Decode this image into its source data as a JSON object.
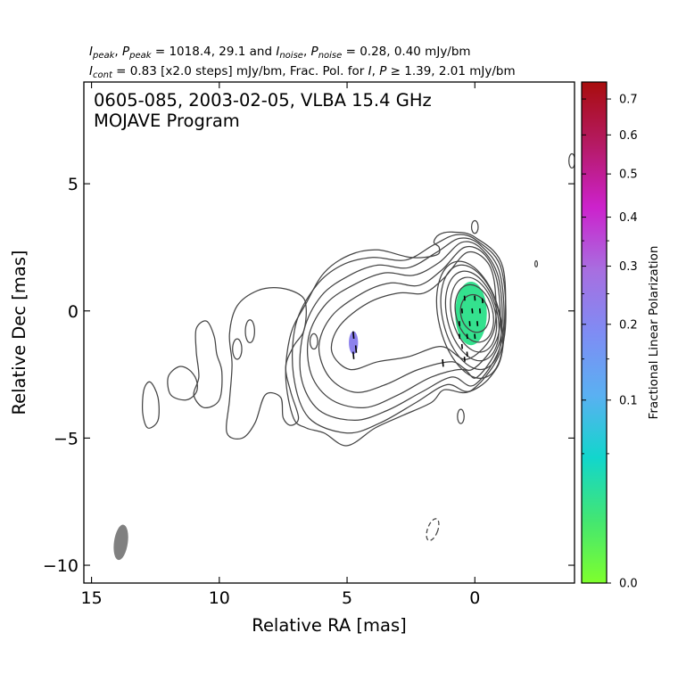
{
  "header": {
    "line1_parts": [
      {
        "t": "I",
        "i": true
      },
      {
        "t": "peak",
        "sub": true
      },
      {
        "t": ", "
      },
      {
        "t": "P",
        "i": true
      },
      {
        "t": "peak",
        "sub": true
      },
      {
        "t": " = 1018.4, 29.1 and "
      },
      {
        "t": "I",
        "i": true
      },
      {
        "t": "noise",
        "sub": true
      },
      {
        "t": ", "
      },
      {
        "t": "P",
        "i": true
      },
      {
        "t": "noise",
        "sub": true
      },
      {
        "t": " = 0.28, 0.40 mJy/bm"
      }
    ],
    "line2_parts": [
      {
        "t": "I",
        "i": true
      },
      {
        "t": "cont",
        "sub": true
      },
      {
        "t": " = 0.83 [x2.0 steps] mJy/bm, Frac. Pol. for "
      },
      {
        "t": "I",
        "i": true
      },
      {
        "t": ", "
      },
      {
        "t": "P",
        "i": true
      },
      {
        "t": " ≥ 1.39, 2.01 mJy/bm"
      }
    ]
  },
  "chart_data": {
    "type": "contour",
    "title": "0605-085, 2003-02-05, VLBA 15.4 GHz",
    "subtitle": "MOJAVE Program",
    "xlabel": "Relative RA [mas]",
    "ylabel": "Relative Dec [mas]",
    "xlim": [
      15.3,
      -3.9
    ],
    "ylim": [
      -10.7,
      9.0
    ],
    "x_ticks": [
      15,
      10,
      5,
      0
    ],
    "x_tick_labels": [
      "15",
      "10",
      "5",
      "0"
    ],
    "y_ticks": [
      5,
      0,
      -5,
      -10
    ],
    "y_tick_labels": [
      "5",
      "0",
      "−5",
      "−10"
    ],
    "colorbar": {
      "label": "Fractional Linear Polarization",
      "scale": "sqrt",
      "range": [
        0.0,
        0.75
      ],
      "ticks": [
        0.0,
        0.1,
        0.2,
        0.3,
        0.4,
        0.5,
        0.6,
        0.7
      ],
      "tick_labels": [
        "0.0",
        "0.1",
        "0.2",
        "0.3",
        "0.4",
        "0.5",
        "0.6",
        "0.7"
      ],
      "minor_ticks": [
        0.05,
        0.15,
        0.25,
        0.35
      ],
      "colors": [
        "#7eff2d",
        "#43e672",
        "#12d6cc",
        "#5ab0f2",
        "#7f8cf4",
        "#a86ee0",
        "#cc22cc",
        "#b51a64",
        "#a80d0d"
      ]
    },
    "core_contours": [
      {
        "cx": 0.0,
        "cy": -0.1,
        "rx": 0.55,
        "ry": 0.75
      },
      {
        "cx": 0.02,
        "cy": -0.1,
        "rx": 0.72,
        "ry": 1.15
      },
      {
        "cx": 0.05,
        "cy": -0.15,
        "rx": 0.85,
        "ry": 1.5
      },
      {
        "cx": 0.1,
        "cy": -0.2,
        "rx": 0.98,
        "ry": 1.8
      },
      {
        "cx": 0.15,
        "cy": -0.25,
        "rx": 1.1,
        "ry": 2.1
      },
      {
        "cx": 0.2,
        "cy": -0.35,
        "rx": 1.2,
        "ry": 2.35
      }
    ],
    "jet_contours": [
      [
        [
          -0.8,
          0.8
        ],
        [
          -0.5,
          1.9
        ],
        [
          0.3,
          2.3
        ],
        [
          1.2,
          1.3
        ],
        [
          2.0,
          0.7
        ],
        [
          3.0,
          0.7
        ],
        [
          4.2,
          0.3
        ],
        [
          5.3,
          -0.6
        ],
        [
          5.6,
          -1.6
        ],
        [
          4.9,
          -2.3
        ],
        [
          3.8,
          -2.0
        ],
        [
          2.6,
          -1.8
        ],
        [
          1.3,
          -1.4
        ],
        [
          0.3,
          -1.9
        ],
        [
          -0.7,
          -0.9
        ]
      ],
      [
        [
          -0.9,
          1.0
        ],
        [
          -0.4,
          2.2
        ],
        [
          0.4,
          2.5
        ],
        [
          1.3,
          1.6
        ],
        [
          2.2,
          1.0
        ],
        [
          3.3,
          1.1
        ],
        [
          4.4,
          0.7
        ],
        [
          5.6,
          -0.2
        ],
        [
          6.1,
          -1.4
        ],
        [
          5.7,
          -2.6
        ],
        [
          4.7,
          -3.2
        ],
        [
          3.5,
          -2.9
        ],
        [
          2.2,
          -2.3
        ],
        [
          0.9,
          -2.0
        ],
        [
          0.1,
          -2.3
        ],
        [
          -0.9,
          -1.0
        ]
      ],
      [
        [
          -0.95,
          1.2
        ],
        [
          -0.3,
          2.4
        ],
        [
          0.5,
          2.7
        ],
        [
          1.4,
          1.9
        ],
        [
          2.4,
          1.4
        ],
        [
          3.5,
          1.5
        ],
        [
          4.6,
          1.1
        ],
        [
          5.8,
          0.3
        ],
        [
          6.5,
          -1.0
        ],
        [
          6.4,
          -2.5
        ],
        [
          5.6,
          -3.5
        ],
        [
          4.3,
          -3.8
        ],
        [
          3.0,
          -3.3
        ],
        [
          1.7,
          -2.6
        ],
        [
          0.5,
          -2.3
        ],
        [
          -0.1,
          -2.6
        ],
        [
          -1.0,
          -1.1
        ]
      ],
      [
        [
          -1.0,
          1.4
        ],
        [
          -0.2,
          2.6
        ],
        [
          0.6,
          2.85
        ],
        [
          1.5,
          2.3
        ],
        [
          2.6,
          1.7
        ],
        [
          3.8,
          1.8
        ],
        [
          4.9,
          1.4
        ],
        [
          6.0,
          0.6
        ],
        [
          6.7,
          -0.8
        ],
        [
          6.8,
          -2.6
        ],
        [
          6.1,
          -3.9
        ],
        [
          4.7,
          -4.3
        ],
        [
          3.4,
          -3.9
        ],
        [
          2.1,
          -3.2
        ],
        [
          0.9,
          -2.6
        ],
        [
          0.0,
          -2.9
        ],
        [
          -1.05,
          -1.2
        ]
      ],
      [
        [
          -1.05,
          1.6
        ],
        [
          -0.1,
          2.75
        ],
        [
          0.7,
          3.0
        ],
        [
          1.6,
          2.6
        ],
        [
          2.7,
          2.0
        ],
        [
          4.0,
          2.1
        ],
        [
          5.2,
          1.8
        ],
        [
          6.2,
          1.0
        ],
        [
          7.0,
          -0.5
        ],
        [
          7.1,
          -2.5
        ],
        [
          6.5,
          -4.2
        ],
        [
          5.0,
          -4.8
        ],
        [
          3.7,
          -4.4
        ],
        [
          2.3,
          -3.6
        ],
        [
          1.1,
          -2.9
        ],
        [
          0.1,
          -3.1
        ],
        [
          -1.1,
          -1.3
        ]
      ],
      [
        [
          -1.1,
          1.7
        ],
        [
          0.0,
          2.9
        ],
        [
          0.9,
          3.1
        ],
        [
          1.4,
          3.0
        ],
        [
          1.6,
          2.7
        ],
        [
          1.4,
          2.5
        ],
        [
          1.5,
          2.2
        ],
        [
          2.5,
          2.1
        ],
        [
          3.8,
          2.4
        ],
        [
          4.9,
          2.2
        ],
        [
          5.9,
          1.5
        ],
        [
          6.6,
          0.3
        ],
        [
          7.2,
          -0.9
        ],
        [
          7.4,
          -2.6
        ],
        [
          7.1,
          -4.2
        ],
        [
          6.6,
          -4.6
        ],
        [
          5.9,
          -4.8
        ],
        [
          5.0,
          -5.3
        ],
        [
          3.9,
          -4.6
        ],
        [
          2.8,
          -4.1
        ],
        [
          1.7,
          -3.6
        ],
        [
          1.2,
          -3.1
        ],
        [
          0.3,
          -3.2
        ],
        [
          -0.6,
          -2.6
        ],
        [
          -1.1,
          -1.4
        ]
      ]
    ],
    "west_contours": [
      [
        [
          6.8,
          0.6
        ],
        [
          7.6,
          0.9
        ],
        [
          8.5,
          0.8
        ],
        [
          9.3,
          0.2
        ],
        [
          9.6,
          -0.9
        ],
        [
          9.5,
          -2.1
        ],
        [
          9.6,
          -3.5
        ],
        [
          9.7,
          -4.8
        ],
        [
          9.1,
          -5.0
        ],
        [
          8.6,
          -4.4
        ],
        [
          8.2,
          -3.3
        ],
        [
          7.6,
          -3.4
        ],
        [
          7.5,
          -4.2
        ],
        [
          7.2,
          -4.5
        ],
        [
          6.9,
          -4.2
        ],
        [
          7.2,
          -3.2
        ],
        [
          7.4,
          -2.2
        ],
        [
          7.1,
          -1.4
        ],
        [
          6.7,
          -0.8
        ],
        [
          6.6,
          0.1
        ]
      ],
      [
        [
          10.2,
          -1.0
        ],
        [
          10.5,
          -0.4
        ],
        [
          10.9,
          -0.7
        ],
        [
          10.9,
          -1.6
        ],
        [
          10.8,
          -2.6
        ],
        [
          11.0,
          -3.3
        ],
        [
          10.6,
          -3.8
        ],
        [
          10.0,
          -3.5
        ],
        [
          9.9,
          -2.4
        ],
        [
          10.1,
          -1.7
        ]
      ],
      [
        [
          11.2,
          -2.3
        ],
        [
          11.6,
          -2.2
        ],
        [
          12.0,
          -2.6
        ],
        [
          11.9,
          -3.3
        ],
        [
          11.3,
          -3.5
        ],
        [
          10.9,
          -3.2
        ],
        [
          10.9,
          -2.7
        ]
      ],
      [
        [
          12.4,
          -3.4
        ],
        [
          12.7,
          -2.8
        ],
        [
          12.95,
          -3.1
        ],
        [
          13.0,
          -4.0
        ],
        [
          12.8,
          -4.6
        ],
        [
          12.4,
          -4.3
        ]
      ]
    ],
    "small_contours": [
      {
        "cx": 8.8,
        "cy": -0.8,
        "rx": 0.18,
        "ry": 0.45
      },
      {
        "cx": 9.3,
        "cy": -1.5,
        "rx": 0.18,
        "ry": 0.4
      },
      {
        "cx": 6.3,
        "cy": -1.2,
        "rx": 0.15,
        "ry": 0.3
      },
      {
        "cx": 0.0,
        "cy": 3.3,
        "rx": 0.13,
        "ry": 0.25
      },
      {
        "cx": 0.55,
        "cy": -4.15,
        "rx": 0.13,
        "ry": 0.28
      },
      {
        "cx": -3.8,
        "cy": 5.9,
        "rx": 0.12,
        "ry": 0.28
      },
      {
        "cx": -2.4,
        "cy": 1.85,
        "rx": 0.05,
        "ry": 0.12
      }
    ],
    "negative_contours": [
      {
        "cx": 1.65,
        "cy": -8.6,
        "rx": 0.2,
        "ry": 0.45
      }
    ],
    "beam": {
      "cx": 13.85,
      "cy": -9.1,
      "rx": 0.27,
      "ry": 0.7
    },
    "pol_regions": [
      {
        "cx": 0.15,
        "cy": -0.1,
        "rx": 0.62,
        "ry": 1.25,
        "frac": 0.02
      },
      {
        "cx": 4.75,
        "cy": -1.25,
        "rx": 0.18,
        "ry": 0.45,
        "frac": 0.22
      }
    ],
    "evpa_ticks": [
      [
        0.4,
        0.5,
        0.2
      ],
      [
        0.0,
        0.5,
        0.2
      ],
      [
        -0.3,
        0.4,
        0.2
      ],
      [
        0.5,
        0.0,
        0.2
      ],
      [
        0.1,
        0.0,
        0.2
      ],
      [
        -0.2,
        0.0,
        0.2
      ],
      [
        0.6,
        -0.5,
        0.2
      ],
      [
        0.2,
        -0.5,
        0.2
      ],
      [
        -0.1,
        -0.5,
        0.2
      ],
      [
        0.6,
        -1.0,
        0.2
      ],
      [
        0.3,
        -1.0,
        0.2
      ],
      [
        0.0,
        -1.0,
        0.2
      ],
      [
        0.5,
        -1.4,
        0.2
      ],
      [
        0.3,
        -1.7,
        0.2
      ],
      [
        0.4,
        -1.9,
        0.2
      ],
      [
        1.25,
        -2.05,
        0.3
      ],
      [
        4.75,
        -0.95,
        0.3
      ],
      [
        4.65,
        -1.5,
        0.3
      ],
      [
        4.75,
        -1.75,
        0.3
      ]
    ]
  }
}
